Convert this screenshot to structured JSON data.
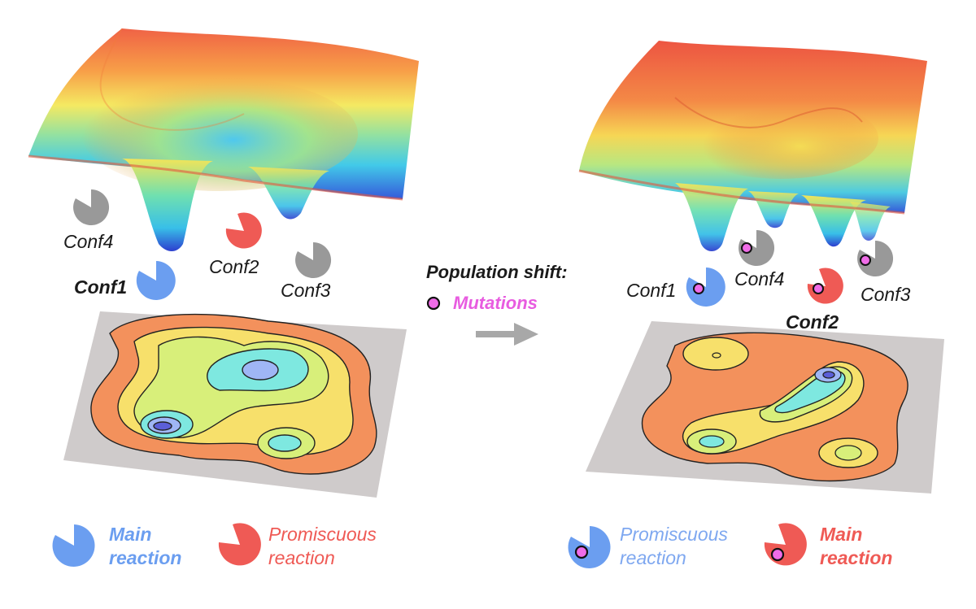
{
  "left_panel": {
    "conformations": [
      "Conf4",
      "Conf2",
      "Conf1",
      "Conf3"
    ],
    "legend": {
      "main": "Main\nreaction",
      "promiscuous": "Promiscuous\nreaction"
    }
  },
  "center": {
    "title": "Population shift:",
    "mutations": "Mutations"
  },
  "right_panel": {
    "conformations": [
      "Conf1",
      "Conf4",
      "Conf2",
      "Conf3"
    ],
    "legend": {
      "promiscuous": "Promiscuous\nreaction",
      "main": "Main\nreaction"
    }
  },
  "colors": {
    "main_left": "#6b9ef0",
    "promiscuous_left": "#ef5a55",
    "inactive": "#999999",
    "mutation": "#f06ce8",
    "arrow": "#a8a8a8",
    "surface_platform": "#cfcbcb"
  },
  "icons": [
    "pacman-conformation-icon",
    "mutation-dot-icon",
    "right-arrow-icon"
  ]
}
